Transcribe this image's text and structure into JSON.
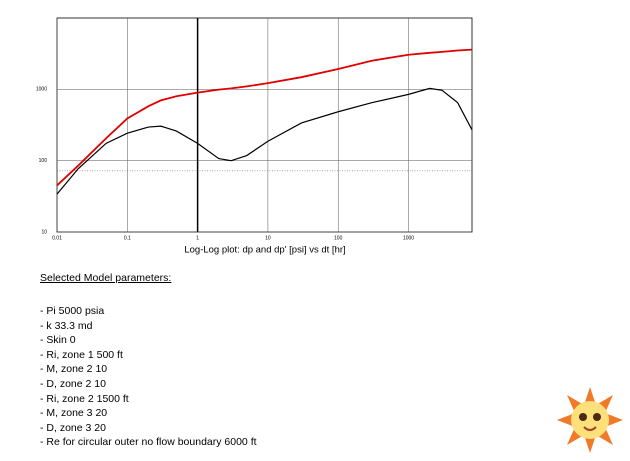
{
  "chart_data": {
    "type": "line",
    "title": "Log-Log plot: dp and dp' [psi] vs dt [hr]",
    "x": [
      0.01,
      0.02,
      0.05,
      0.1,
      0.2,
      0.3,
      0.5,
      1,
      2,
      3,
      5,
      10,
      30,
      100,
      300,
      1000,
      2000,
      3000,
      5000,
      8000
    ],
    "series": [
      {
        "color": "#e00000",
        "values": [
          45,
          85,
          206,
          390,
          580,
          700,
          800,
          900,
          990,
          1030,
          1100,
          1220,
          1480,
          1930,
          2520,
          3050,
          3250,
          3350,
          3500,
          3600
        ]
      },
      {
        "color": "#000000",
        "values": [
          34,
          77,
          175,
          243,
          296,
          305,
          260,
          175,
          107,
          100,
          118,
          187,
          338,
          485,
          650,
          850,
          1030,
          970,
          650,
          270
        ]
      }
    ],
    "xlim": [
      0.01,
      8000
    ],
    "ylim": [
      10,
      10000
    ],
    "log_x": true,
    "log_y": true,
    "xticks": [
      0.01,
      0.1,
      1,
      10,
      100,
      1000
    ],
    "yticks": [
      10,
      100,
      1000
    ],
    "grid": true,
    "reference_line": 72,
    "cursor_x": 1
  },
  "parameters": {
    "heading": "Selected Model parameters:",
    "items": [
      "- Pi 5000 psia",
      "- k 33.3 md",
      "- Skin 0",
      "- Ri, zone 1 500 ft",
      "- M, zone 2 10",
      "- D, zone 2 10",
      "- Ri, zone 2 1500 ft",
      "- M, zone 3 20",
      "- D, zone 3 20",
      "- Re for circular outer no flow boundary 6000 ft"
    ]
  }
}
